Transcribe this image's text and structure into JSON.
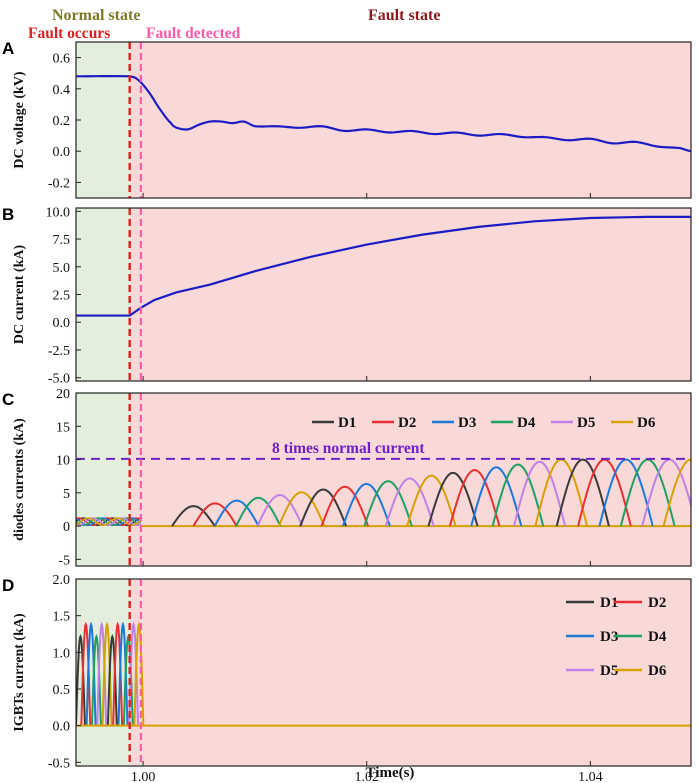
{
  "header": {
    "normal_state": "Normal state",
    "fault_state": "Fault state",
    "fault_occurs": "Fault occurs",
    "fault_detected": "Fault detected"
  },
  "x_axis": {
    "label": "Time(s)",
    "range": [
      0.994,
      1.049
    ],
    "ticks": [
      1.0,
      1.02,
      1.04
    ],
    "tick_labels": [
      "1.00",
      "1.02",
      "1.04"
    ]
  },
  "colors": {
    "normal_bg": "#e3eedd",
    "fault_bg": "#f8d9d8",
    "main_line": "#1c1cc4",
    "fault_occurs": "#e02020",
    "fault_detected": "#ff5aa8",
    "normal_text": "#7a7a2a",
    "fault_text": "#8b1a1a",
    "ref_line": "#6e22c8"
  },
  "events": {
    "fault_occurs": 0.9988,
    "fault_detected": 0.9998
  },
  "chart_data": [
    {
      "panel": "A",
      "type": "line",
      "ylabel": "DC voltage (kV)",
      "ylim": [
        -0.3,
        0.7
      ],
      "yticks": [
        0.6,
        0.4,
        0.2,
        0.0,
        -0.2
      ],
      "ytick_labels": [
        "0.6",
        "0.4",
        "0.2",
        "0.0",
        "-0.2"
      ],
      "series": [
        {
          "color": "#1c1cc4",
          "x": [
            0.994,
            0.9988,
            0.9995,
            1.0005,
            1.0015,
            1.0025,
            1.003,
            1.004,
            1.005,
            1.006,
            1.007,
            1.008,
            1.009,
            1.01,
            1.012,
            1.014,
            1.016,
            1.018,
            1.02,
            1.022,
            1.024,
            1.026,
            1.028,
            1.03,
            1.032,
            1.034,
            1.036,
            1.038,
            1.04,
            1.042,
            1.044,
            1.046,
            1.048,
            1.049
          ],
          "y": [
            0.48,
            0.48,
            0.46,
            0.38,
            0.27,
            0.18,
            0.15,
            0.14,
            0.17,
            0.19,
            0.19,
            0.18,
            0.19,
            0.16,
            0.16,
            0.15,
            0.16,
            0.13,
            0.14,
            0.12,
            0.13,
            0.11,
            0.12,
            0.1,
            0.11,
            0.09,
            0.09,
            0.07,
            0.08,
            0.05,
            0.06,
            0.03,
            0.02,
            0.0
          ]
        }
      ]
    },
    {
      "panel": "B",
      "type": "line",
      "ylabel": "DC current (kA)",
      "ylim": [
        -5.3,
        10.3
      ],
      "yticks": [
        10.0,
        7.5,
        5.0,
        2.5,
        0.0,
        -2.5,
        -5.0
      ],
      "ytick_labels": [
        "10.0",
        "7.5",
        "5.0",
        "2.5",
        "0.0",
        "-2.5",
        "-5.0"
      ],
      "series": [
        {
          "color": "#1c1cc4",
          "x": [
            0.994,
            0.9988,
            0.9998,
            1.001,
            1.003,
            1.006,
            1.01,
            1.015,
            1.02,
            1.025,
            1.03,
            1.035,
            1.04,
            1.045,
            1.049
          ],
          "y": [
            0.6,
            0.6,
            1.3,
            2.0,
            2.7,
            3.4,
            4.6,
            5.9,
            7.0,
            7.9,
            8.6,
            9.1,
            9.4,
            9.5,
            9.5
          ]
        }
      ]
    },
    {
      "panel": "C",
      "type": "line",
      "ylabel": "diodes currents (kA)",
      "ylim": [
        -6,
        20
      ],
      "yticks": [
        20,
        15,
        10,
        5,
        0,
        -5
      ],
      "ytick_labels": [
        "20",
        "15",
        "10",
        "5",
        "0",
        "-5"
      ],
      "annotation": "8 times normal current",
      "ref_value": 10.1,
      "legend": {
        "placement": "top",
        "names": [
          "D1",
          "D2",
          "D3",
          "D4",
          "D5",
          "D6"
        ],
        "colors": [
          "#3a3a3a",
          "#e83030",
          "#1e78d8",
          "#20a060",
          "#c080e8",
          "#d8a000"
        ]
      },
      "lobes": {
        "start": 1.0045,
        "end": 1.049,
        "count": 24,
        "width": 0.0045,
        "amp_start": 3.0,
        "amp_end": 10.0,
        "normal_ripple": 1.2
      }
    },
    {
      "panel": "D",
      "type": "line",
      "ylabel": "IGBTs current (kA)",
      "ylim": [
        -0.55,
        2.0
      ],
      "yticks": [
        2.0,
        1.5,
        1.0,
        0.5,
        0.0,
        -0.5
      ],
      "ytick_labels": [
        "2.0",
        "1.5",
        "1.0",
        "0.5",
        "0.0",
        "-0.5"
      ],
      "legend": {
        "placement": "top-right",
        "names": [
          "D1",
          "D2",
          "D3",
          "D4",
          "D5",
          "D6"
        ],
        "colors": [
          "#3a3a3a",
          "#e83030",
          "#1e78d8",
          "#20a060",
          "#c080e8",
          "#d8a000"
        ]
      },
      "pulses": {
        "start": 0.994,
        "end": 1.0,
        "amp": 1.38,
        "count": 12
      }
    }
  ]
}
